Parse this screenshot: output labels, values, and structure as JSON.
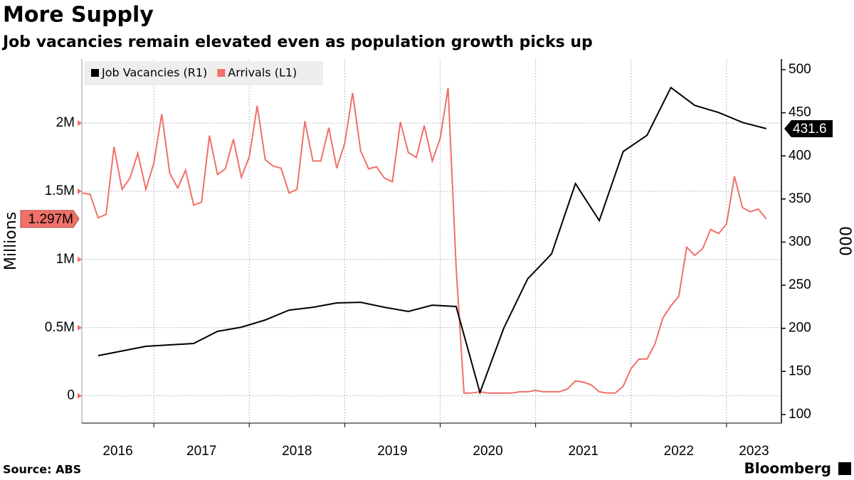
{
  "chart_data": {
    "type": "line",
    "title": "More Supply",
    "subtitle": "Job vacancies remain elevated even as population growth picks up",
    "ylabel": "Millions",
    "y2label": "000",
    "source": "Source: ABS",
    "brand": "Bloomberg",
    "legend": "top-left",
    "grid": true,
    "xlim": [
      2016.246,
      2023.575
    ],
    "xticks": [
      {
        "value": 2016,
        "label": "2016"
      },
      {
        "value": 2017,
        "label": "2017"
      },
      {
        "value": 2018,
        "label": "2018"
      },
      {
        "value": 2019,
        "label": "2019"
      },
      {
        "value": 2020,
        "label": "2020"
      },
      {
        "value": 2021,
        "label": "2021"
      },
      {
        "value": 2022,
        "label": "2022"
      },
      {
        "value": 2023,
        "label": "2023"
      }
    ],
    "ylim": [
      -0.2,
      2.47
    ],
    "yticks": [
      0,
      {
        "value": 0.5,
        "label": "0.5M"
      },
      {
        "value": 1,
        "label": "1M"
      },
      {
        "value": 1.5,
        "label": "1.5M"
      },
      {
        "value": 2,
        "label": "2M"
      }
    ],
    "y2lim": [
      90,
      512.4
    ],
    "y2ticks": [
      100,
      150,
      200,
      250,
      300,
      350,
      400,
      450,
      500
    ],
    "series": [
      {
        "name": "Job Vacancies (R1)",
        "color": "#000000",
        "axis": "y2",
        "end_label": "431.6",
        "x": [
          2016.417,
          2016.917,
          2017.417,
          2017.667,
          2017.917,
          2018.167,
          2018.417,
          2018.667,
          2018.917,
          2019.167,
          2019.417,
          2019.667,
          2019.917,
          2020.167,
          2020.417,
          2020.667,
          2020.917,
          2021.167,
          2021.417,
          2021.667,
          2021.917,
          2022.167,
          2022.417,
          2022.667,
          2022.917,
          2023.167,
          2023.417
        ],
        "values": [
          168.3,
          179.1,
          182.4,
          196.4,
          201.3,
          209.6,
          221.1,
          224.4,
          229.4,
          230.2,
          224.4,
          219.5,
          226.9,
          225.3,
          125.5,
          200.5,
          257.4,
          286.3,
          367.9,
          325.0,
          405.0,
          424.0,
          479.3,
          458.6,
          450.4,
          438.8,
          431.6
        ]
      },
      {
        "name": "Arrivals (L1)",
        "color": "#f0706a",
        "axis": "y",
        "end_label": "1.297M",
        "x": [
          2016.25,
          2016.333,
          2016.417,
          2016.5,
          2016.583,
          2016.667,
          2016.75,
          2016.833,
          2016.917,
          2017,
          2017.083,
          2017.167,
          2017.25,
          2017.333,
          2017.417,
          2017.5,
          2017.583,
          2017.667,
          2017.75,
          2017.833,
          2017.917,
          2018,
          2018.083,
          2018.167,
          2018.25,
          2018.333,
          2018.417,
          2018.5,
          2018.583,
          2018.667,
          2018.75,
          2018.833,
          2018.917,
          2019,
          2019.083,
          2019.167,
          2019.25,
          2019.333,
          2019.417,
          2019.5,
          2019.583,
          2019.667,
          2019.75,
          2019.833,
          2019.917,
          2020,
          2020.083,
          2020.167,
          2020.25,
          2020.333,
          2020.417,
          2020.5,
          2020.583,
          2020.667,
          2020.75,
          2020.833,
          2020.917,
          2021,
          2021.083,
          2021.167,
          2021.25,
          2021.333,
          2021.417,
          2021.5,
          2021.583,
          2021.667,
          2021.75,
          2021.833,
          2021.917,
          2022,
          2022.083,
          2022.167,
          2022.25,
          2022.333,
          2022.417,
          2022.5,
          2022.583,
          2022.667,
          2022.75,
          2022.833,
          2022.917,
          2023,
          2023.083,
          2023.167,
          2023.25,
          2023.333,
          2023.417
        ],
        "values": [
          1.487,
          1.477,
          1.305,
          1.331,
          1.826,
          1.514,
          1.597,
          1.779,
          1.514,
          1.706,
          2.066,
          1.633,
          1.524,
          1.654,
          1.399,
          1.42,
          1.909,
          1.623,
          1.665,
          1.883,
          1.602,
          1.753,
          2.128,
          1.732,
          1.685,
          1.67,
          1.487,
          1.514,
          2.014,
          1.722,
          1.722,
          1.966,
          1.67,
          1.852,
          2.222,
          1.795,
          1.665,
          1.68,
          1.597,
          1.57,
          2.008,
          1.784,
          1.748,
          1.982,
          1.722,
          1.888,
          2.258,
          0.946,
          0.02,
          0.02,
          0.03,
          0.02,
          0.02,
          0.02,
          0.02,
          0.03,
          0.03,
          0.04,
          0.03,
          0.03,
          0.03,
          0.05,
          0.11,
          0.1,
          0.08,
          0.03,
          0.02,
          0.02,
          0.07,
          0.2,
          0.27,
          0.27,
          0.38,
          0.57,
          0.66,
          0.73,
          1.09,
          1.03,
          1.08,
          1.22,
          1.19,
          1.26,
          1.61,
          1.38,
          1.35,
          1.37,
          1.297
        ]
      }
    ]
  }
}
